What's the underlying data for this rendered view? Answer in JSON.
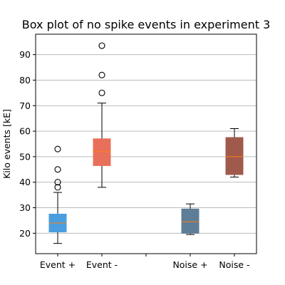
{
  "chart_data": {
    "type": "box",
    "title": "Box plot of no spike events in experiment 3",
    "xlabel": "",
    "ylabel": "Kilo events [kE]",
    "ylim": [
      12,
      98
    ],
    "yticks": [
      20,
      30,
      40,
      50,
      60,
      70,
      80,
      90
    ],
    "grid": "horizontal",
    "categories": [
      "Event +",
      "Event -",
      "",
      "Noise +",
      "Noise -"
    ],
    "boxes": [
      {
        "category": "Event +",
        "color": "#4a9ee0",
        "whisker_low": 16,
        "q1": 20.5,
        "median": 24,
        "q3": 27.5,
        "whisker_high": 36,
        "outliers": [
          38,
          40,
          45,
          53
        ]
      },
      {
        "category": "Event -",
        "color": "#e8705a",
        "whisker_low": 38,
        "q1": 46.5,
        "median": 52,
        "q3": 57,
        "whisker_high": 71,
        "outliers": [
          75,
          82,
          93.5
        ]
      },
      {
        "category": "Noise +",
        "color": "#5e7d96",
        "whisker_low": 19.5,
        "q1": 20,
        "median": 24.5,
        "q3": 29.5,
        "whisker_high": 31.5,
        "outliers": []
      },
      {
        "category": "Noise -",
        "color": "#a05a4c",
        "whisker_low": 42,
        "q1": 43,
        "median": 50,
        "q3": 57.5,
        "whisker_high": 61,
        "outliers": []
      }
    ],
    "median_color": "#ff7f0e",
    "grid_color": "#b0b0b0"
  }
}
